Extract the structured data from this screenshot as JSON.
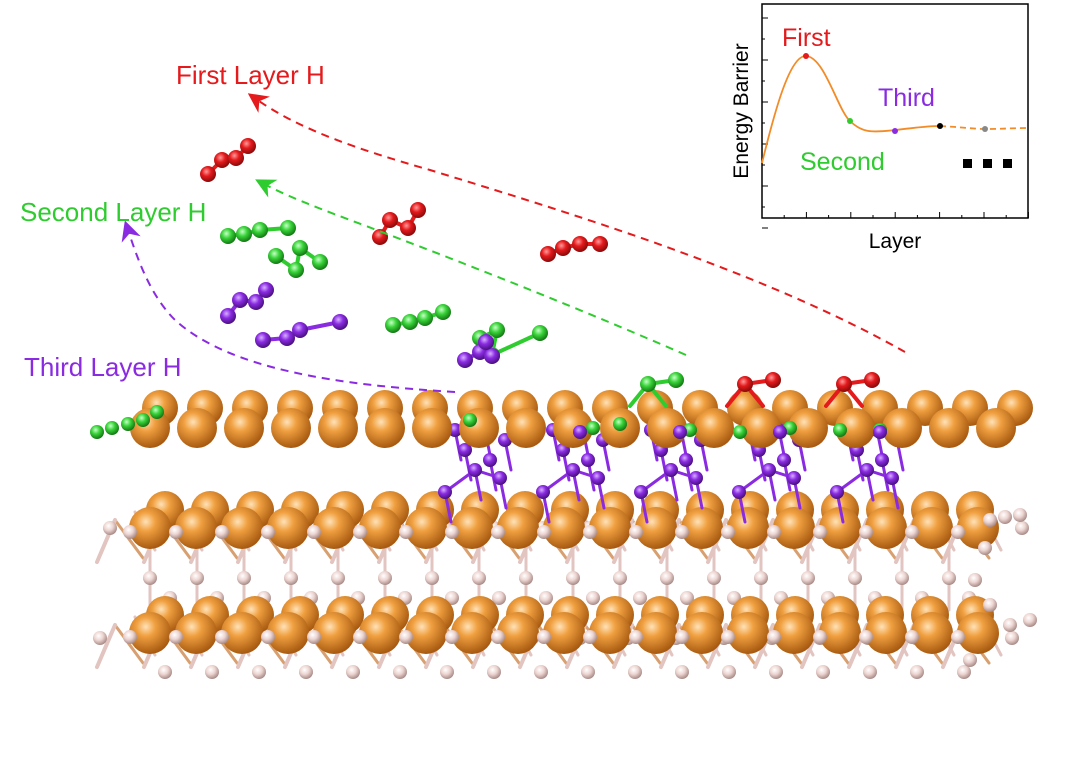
{
  "labels": {
    "first": "First Layer H",
    "second": "Second Layer H",
    "third": "Third Layer H"
  },
  "inset": {
    "ylabel": "Energy Barrier",
    "xlabel": "Layer",
    "first": "First",
    "second": "Second",
    "third": "Third",
    "ellipsis_icon": "three-dots-icon"
  },
  "colors": {
    "first": "#e41a1c",
    "second": "#2fcc2f",
    "third": "#8a2be2",
    "metal": "#e0862a",
    "light_atom": "#e6c9c6",
    "curve": "#f28c28"
  },
  "chart_data": {
    "type": "line",
    "xlabel": "Layer",
    "ylabel": "Energy Barrier",
    "ticks": "none-labeled",
    "annotations": [
      "First",
      "Second",
      "Third"
    ],
    "marked_points": [
      {
        "label": "First",
        "color": "#e41a1c"
      },
      {
        "label": "Second",
        "color": "#2fcc2f"
      },
      {
        "label": "Third",
        "color": "#8a2be2"
      },
      {
        "label": "",
        "color": "#000000"
      },
      {
        "label": "",
        "color": "#888888"
      }
    ]
  }
}
